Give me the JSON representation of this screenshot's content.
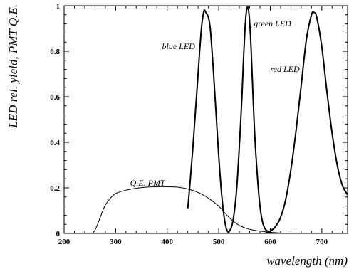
{
  "chart_data": {
    "type": "line",
    "xlabel": "wavelength (nm)",
    "ylabel": "LED rel. yield, PMT Q.E.",
    "xlim": [
      200,
      750
    ],
    "ylim": [
      0,
      1
    ],
    "x_ticks": [
      200,
      300,
      400,
      500,
      600,
      700
    ],
    "y_ticks": [
      0,
      0.2,
      0.4,
      0.6,
      0.8,
      1
    ],
    "x_tick_labels": [
      "200",
      "300",
      "400",
      "500",
      "600",
      "700"
    ],
    "y_tick_labels": [
      "0",
      "0.2",
      "0.4",
      "0.6",
      "0.8",
      "1"
    ],
    "grid": false,
    "legend": "none",
    "series": [
      {
        "name": "blue LED",
        "x": [
          440,
          445,
          450,
          455,
          460,
          463,
          466,
          469,
          472,
          475,
          478,
          481,
          484,
          487,
          490,
          495,
          500,
          505,
          510,
          515,
          520
        ],
        "y": [
          0.11,
          0.24,
          0.38,
          0.54,
          0.7,
          0.8,
          0.89,
          0.95,
          0.98,
          0.97,
          0.96,
          0.94,
          0.89,
          0.8,
          0.7,
          0.52,
          0.34,
          0.19,
          0.08,
          0.02,
          0.0
        ]
      },
      {
        "name": "green LED",
        "x": [
          518,
          525,
          530,
          535,
          540,
          545,
          548,
          551,
          554,
          557,
          560,
          563,
          566,
          570,
          575,
          580,
          585,
          590,
          595,
          600
        ],
        "y": [
          0.0,
          0.03,
          0.09,
          0.2,
          0.38,
          0.6,
          0.76,
          0.9,
          0.98,
          0.99,
          0.93,
          0.8,
          0.63,
          0.43,
          0.25,
          0.12,
          0.05,
          0.02,
          0.01,
          0.0
        ]
      },
      {
        "name": "red LED",
        "x": [
          590,
          600,
          610,
          620,
          630,
          640,
          650,
          660,
          670,
          680,
          685,
          690,
          700,
          710,
          720,
          730,
          740,
          750
        ],
        "y": [
          0.0,
          0.01,
          0.03,
          0.07,
          0.15,
          0.28,
          0.45,
          0.65,
          0.85,
          0.96,
          0.97,
          0.95,
          0.82,
          0.62,
          0.44,
          0.3,
          0.21,
          0.17
        ]
      },
      {
        "name": "Q.E. PMT",
        "x": [
          255,
          260,
          265,
          270,
          275,
          280,
          290,
          300,
          320,
          340,
          360,
          380,
          400,
          420,
          440,
          460,
          480,
          500,
          510,
          520,
          530,
          540,
          550,
          560,
          580,
          600,
          620,
          640
        ],
        "y": [
          0.0,
          0.015,
          0.04,
          0.07,
          0.1,
          0.125,
          0.155,
          0.175,
          0.19,
          0.198,
          0.203,
          0.205,
          0.205,
          0.203,
          0.195,
          0.18,
          0.155,
          0.12,
          0.095,
          0.07,
          0.05,
          0.035,
          0.025,
          0.018,
          0.01,
          0.005,
          0.002,
          0.0
        ]
      }
    ],
    "annotations": [
      {
        "text": "blue LED",
        "x": 390,
        "y": 0.81
      },
      {
        "text": "green LED",
        "x": 568,
        "y": 0.91
      },
      {
        "text": "red LED",
        "x": 600,
        "y": 0.71
      },
      {
        "text": "Q.E. PMT",
        "x": 328,
        "y": 0.21
      }
    ]
  }
}
